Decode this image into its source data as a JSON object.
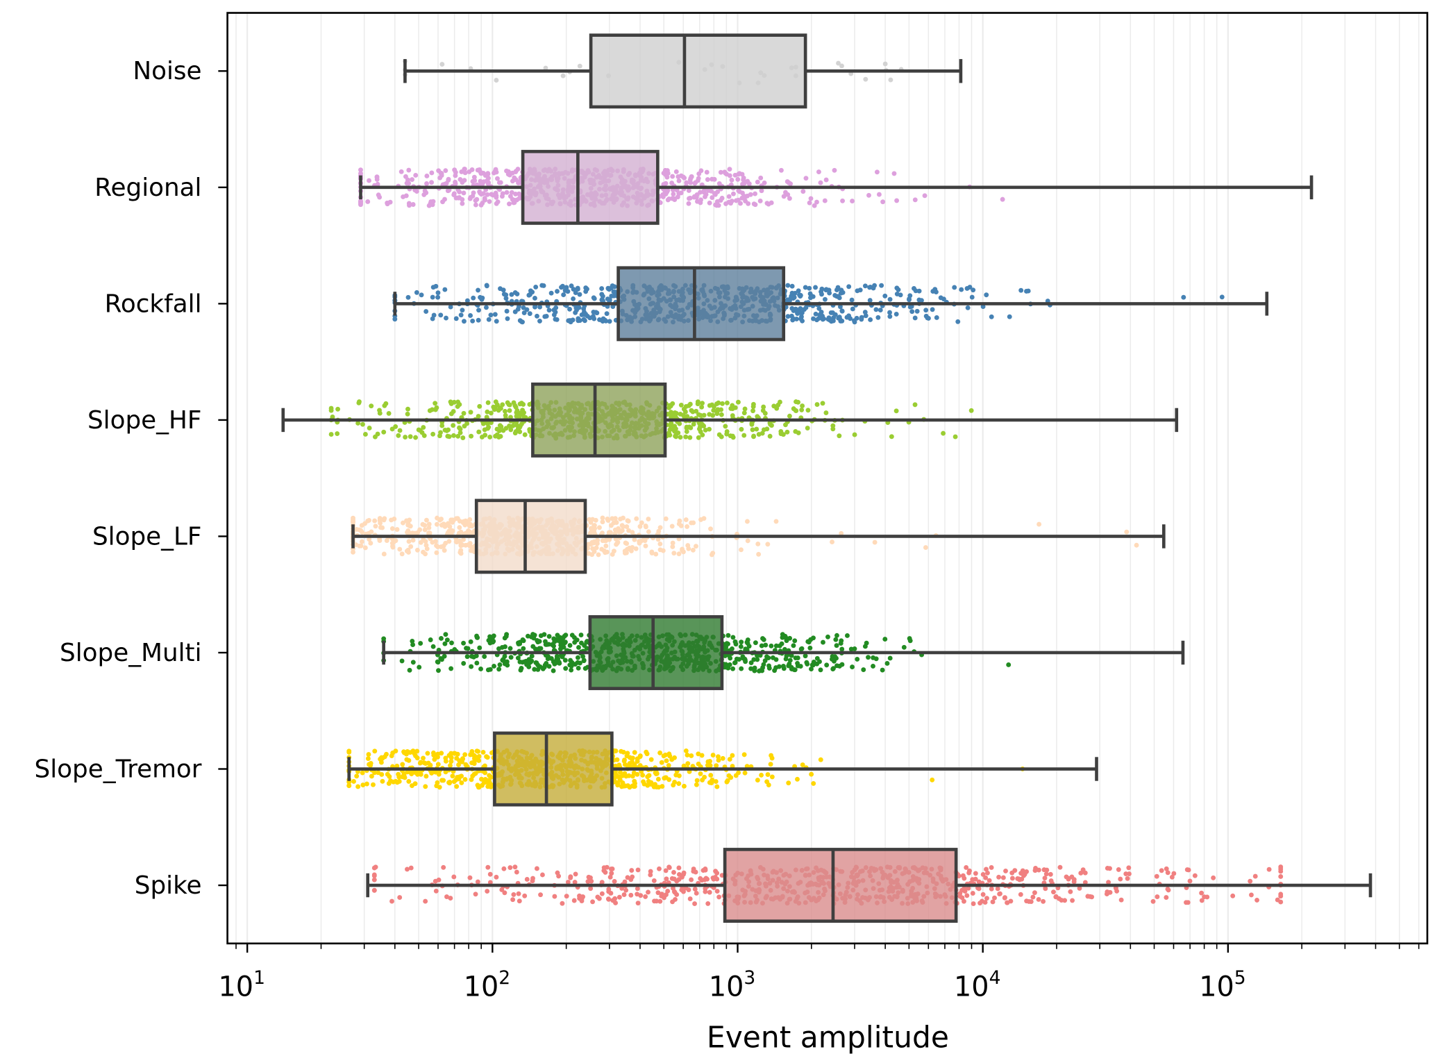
{
  "chart_data": {
    "type": "box",
    "orientation": "horizontal",
    "title": "",
    "xlabel": "Event amplitude",
    "ylabel": "",
    "xscale": "log",
    "xlim": [
      8.3,
      650000
    ],
    "xticks": [
      {
        "base": "10",
        "exp": "1",
        "value": 10
      },
      {
        "base": "10",
        "exp": "2",
        "value": 100
      },
      {
        "base": "10",
        "exp": "3",
        "value": 1000
      },
      {
        "base": "10",
        "exp": "4",
        "value": 10000
      },
      {
        "base": "10",
        "exp": "5",
        "value": 100000
      }
    ],
    "grid": "vertical minor and major, light gray",
    "overlay": "strip (jittered points)",
    "categories": [
      {
        "name": "Noise",
        "color": "#d3d3d3",
        "box_color": "#cfcfcf",
        "whisker_low": 44,
        "q1": 252,
        "median": 607,
        "q3": 1890,
        "whisker_high": 8130,
        "points_range": [
          44,
          6300
        ]
      },
      {
        "name": "Regional",
        "color": "#dda0dd",
        "box_color": "#d3b0d2",
        "whisker_low": 29,
        "q1": 133,
        "median": 223,
        "q3": 472,
        "whisker_high": 219000,
        "points_range": [
          29,
          144000
        ]
      },
      {
        "name": "Rockfall",
        "color": "#4682b4",
        "box_color": "#5e809c",
        "whisker_low": 40,
        "q1": 326,
        "median": 667,
        "q3": 1540,
        "whisker_high": 144000,
        "points_range": [
          40,
          140000
        ]
      },
      {
        "name": "Slope_HF",
        "color": "#9acd32",
        "box_color": "#8ea35b",
        "whisker_low": 14,
        "q1": 146,
        "median": 262,
        "q3": 506,
        "whisker_high": 61700,
        "points_range": [
          22,
          59000
        ]
      },
      {
        "name": "Slope_LF",
        "color": "#ffdab9",
        "box_color": "#f3dccb",
        "whisker_low": 27,
        "q1": 86,
        "median": 136,
        "q3": 239,
        "whisker_high": 54700,
        "points_range": [
          27,
          46000
        ]
      },
      {
        "name": "Slope_Multi",
        "color": "#228b22",
        "box_color": "#2f7a2f",
        "whisker_low": 36,
        "q1": 250,
        "median": 452,
        "q3": 863,
        "whisker_high": 65500,
        "points_range": [
          36,
          54000
        ]
      },
      {
        "name": "Slope_Tremor",
        "color": "#ffd700",
        "box_color": "#c4ad3a",
        "whisker_low": 26,
        "q1": 102,
        "median": 166,
        "q3": 307,
        "whisker_high": 29100,
        "points_range": [
          26,
          18400
        ]
      },
      {
        "name": "Spike",
        "color": "#f08080",
        "box_color": "#d98c8c",
        "whisker_low": 31,
        "q1": 887,
        "median": 2450,
        "q3": 7780,
        "whisker_high": 381000,
        "points_range": [
          33,
          164000
        ]
      }
    ]
  }
}
